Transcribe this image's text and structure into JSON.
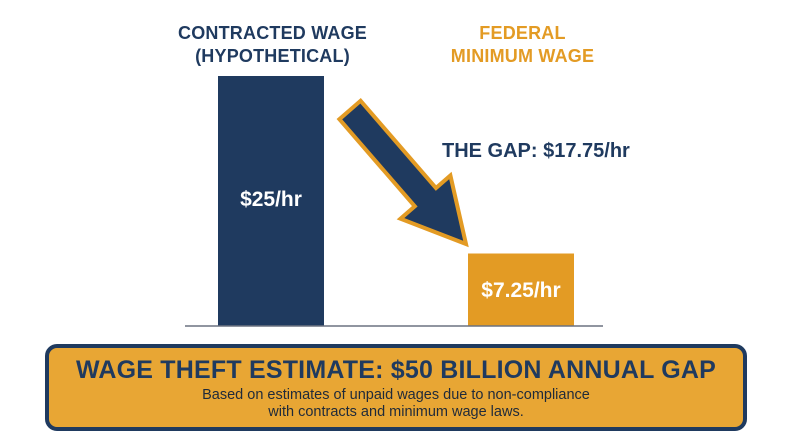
{
  "chart_data": {
    "type": "bar",
    "categories": [
      [
        "CONTRACTED WAGE",
        "(HYPOTHETICAL)"
      ],
      [
        "FEDERAL",
        "MINIMUM WAGE"
      ]
    ],
    "values": [
      25,
      7.25
    ],
    "value_labels": [
      "$25/hr",
      "$7.25/hr"
    ],
    "bar_colors": [
      "#1f3a5f",
      "#e39b24"
    ],
    "ylim": [
      0,
      25
    ],
    "grid": false,
    "annotation": "THE GAP: $17.75/hr",
    "arrow_color": "#1f3a5f",
    "arrow_outline": "#e39b24"
  },
  "banner": {
    "title": "WAGE THEFT ESTIMATE: $50 BILLION ANNUAL GAP",
    "subtitle_line1": "Based on estimates of unpaid wages due to non-compliance",
    "subtitle_line2": "with contracts and minimum wage laws."
  },
  "colors": {
    "navy": "#1f3a5f",
    "gold": "#e39b24",
    "banner_bg": "#e8a634"
  }
}
